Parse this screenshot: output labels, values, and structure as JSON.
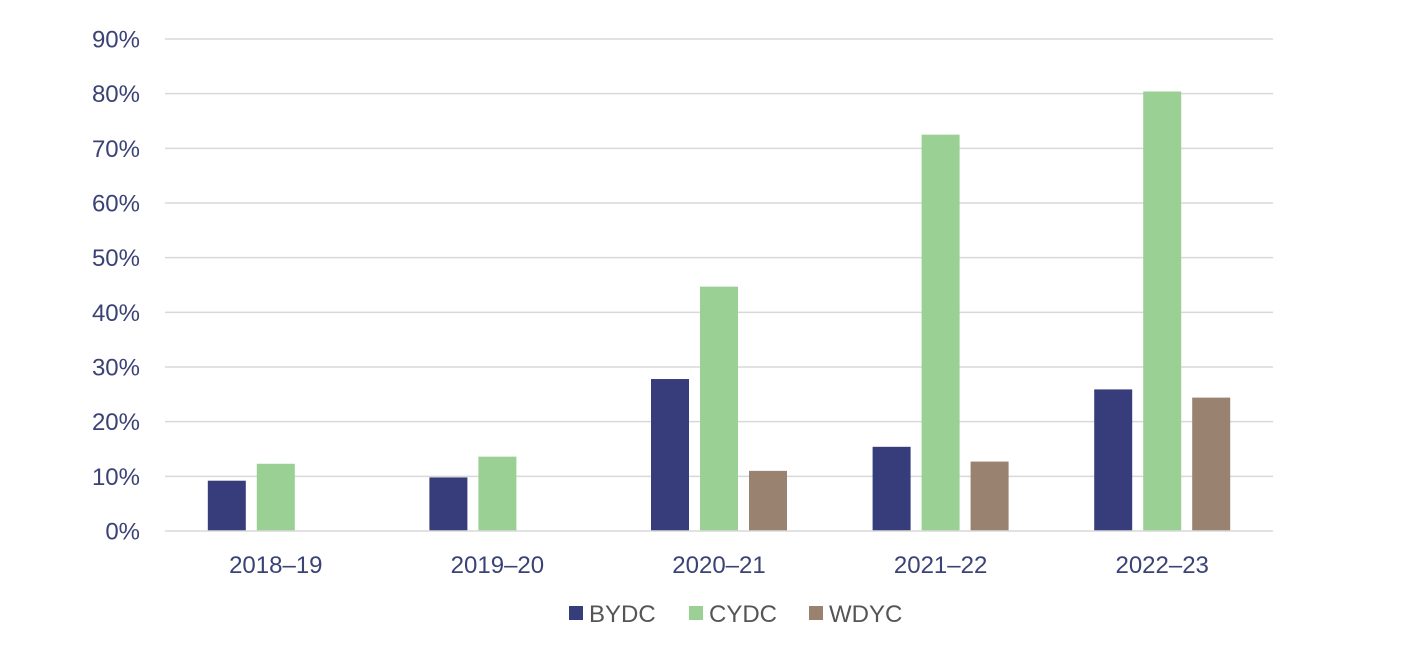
{
  "chart_data": {
    "type": "bar",
    "title": "",
    "xlabel": "",
    "ylabel": "",
    "categories": [
      "2018–19",
      "2019–20",
      "2020–21",
      "2021–22",
      "2022–23"
    ],
    "series": [
      {
        "name": "BYDC",
        "color": "#363d7a",
        "values": [
          9.2,
          9.8,
          27.8,
          15.4,
          25.9
        ]
      },
      {
        "name": "CYDC",
        "color": "#9ad093",
        "values": [
          12.3,
          13.6,
          44.7,
          72.5,
          80.4
        ]
      },
      {
        "name": "WDYC",
        "color": "#9a8270",
        "values": [
          null,
          null,
          11.0,
          12.7,
          24.4
        ]
      }
    ],
    "ylim": [
      0,
      90
    ],
    "yticks": [
      0,
      10,
      20,
      30,
      40,
      50,
      60,
      70,
      80,
      90
    ],
    "ytick_format": "percent",
    "grid": true,
    "legend": "bottom-center"
  }
}
